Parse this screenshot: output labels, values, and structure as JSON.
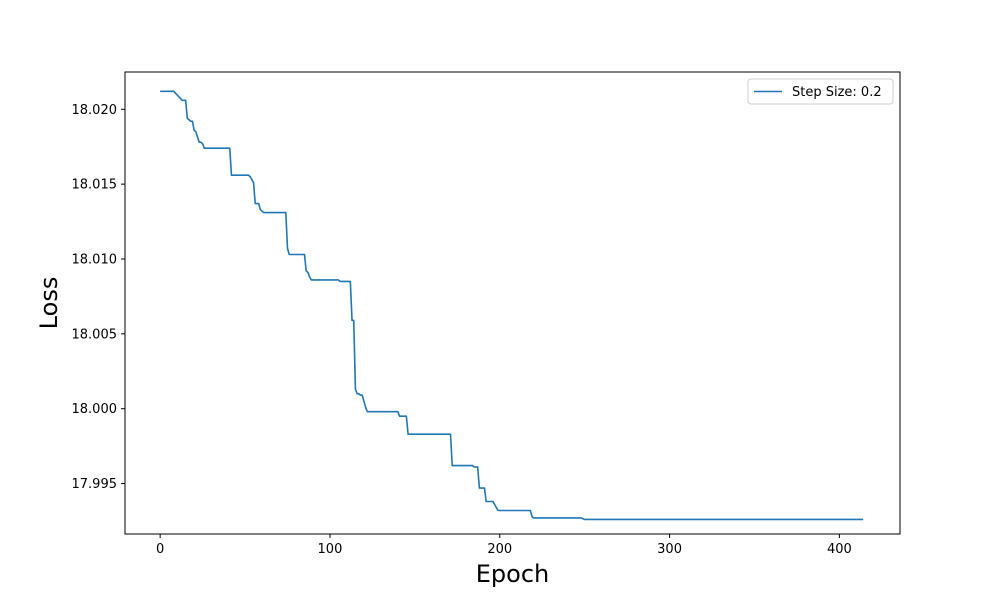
{
  "chart_data": {
    "type": "line",
    "title": "",
    "xlabel": "Epoch",
    "ylabel": "Loss",
    "xlim": [
      -20.7,
      435.7
    ],
    "ylim": [
      17.99163,
      18.02249
    ],
    "xticks": [
      0,
      100,
      200,
      300,
      400
    ],
    "xtick_labels": [
      "0",
      "100",
      "200",
      "300",
      "400"
    ],
    "yticks": [
      17.995,
      18.0,
      18.005,
      18.01,
      18.015,
      18.02
    ],
    "ytick_labels": [
      "17.995",
      "18.000",
      "18.005",
      "18.010",
      "18.015",
      "18.020"
    ],
    "grid": false,
    "legend_position": "upper right",
    "colors": {
      "series": "#1f77b4",
      "axes": "#000000",
      "background": "#ffffff"
    },
    "series": [
      {
        "name": "Step Size: 0.2",
        "x": [
          0,
          8,
          8,
          13,
          13,
          15,
          16,
          18,
          19,
          20,
          21,
          23,
          24,
          25,
          26,
          41,
          42,
          52,
          53,
          55,
          56,
          57,
          58,
          59,
          60,
          61,
          62,
          74,
          75,
          76,
          77,
          85,
          86,
          87,
          88,
          89,
          105,
          106,
          107,
          112,
          113,
          114,
          115,
          116,
          117,
          118,
          119,
          120,
          121,
          122,
          123,
          124,
          140,
          141,
          145,
          146,
          150,
          151,
          171,
          172,
          184,
          185,
          187,
          188,
          191,
          192,
          196,
          197,
          199,
          200,
          218,
          219,
          220,
          221,
          248,
          250,
          414
        ],
        "y": [
          18.0212,
          18.0212,
          18.0212,
          18.0206,
          18.0206,
          18.0206,
          18.0194,
          18.0192,
          18.0192,
          18.0186,
          18.0185,
          18.0178,
          18.0178,
          18.0177,
          18.0174,
          18.0174,
          18.0156,
          18.0156,
          18.0155,
          18.0151,
          18.0137,
          18.0137,
          18.0137,
          18.0133,
          18.0132,
          18.0131,
          18.0131,
          18.0131,
          18.0107,
          18.0103,
          18.0103,
          18.0103,
          18.0092,
          18.0091,
          18.0088,
          18.0086,
          18.0086,
          18.0085,
          18.0085,
          18.0085,
          18.0059,
          18.0059,
          18.0013,
          18.001,
          18.001,
          18.0009,
          18.0009,
          18.0005,
          18.0001,
          17.9998,
          17.9998,
          17.9998,
          17.9998,
          17.9995,
          17.9995,
          17.9983,
          17.9983,
          17.9983,
          17.9983,
          17.9962,
          17.9962,
          17.9961,
          17.9961,
          17.9947,
          17.9947,
          17.9938,
          17.9938,
          17.9936,
          17.9932,
          17.9932,
          17.9932,
          17.9928,
          17.9927,
          17.9927,
          17.9927,
          17.9926,
          17.9926
        ]
      }
    ]
  }
}
